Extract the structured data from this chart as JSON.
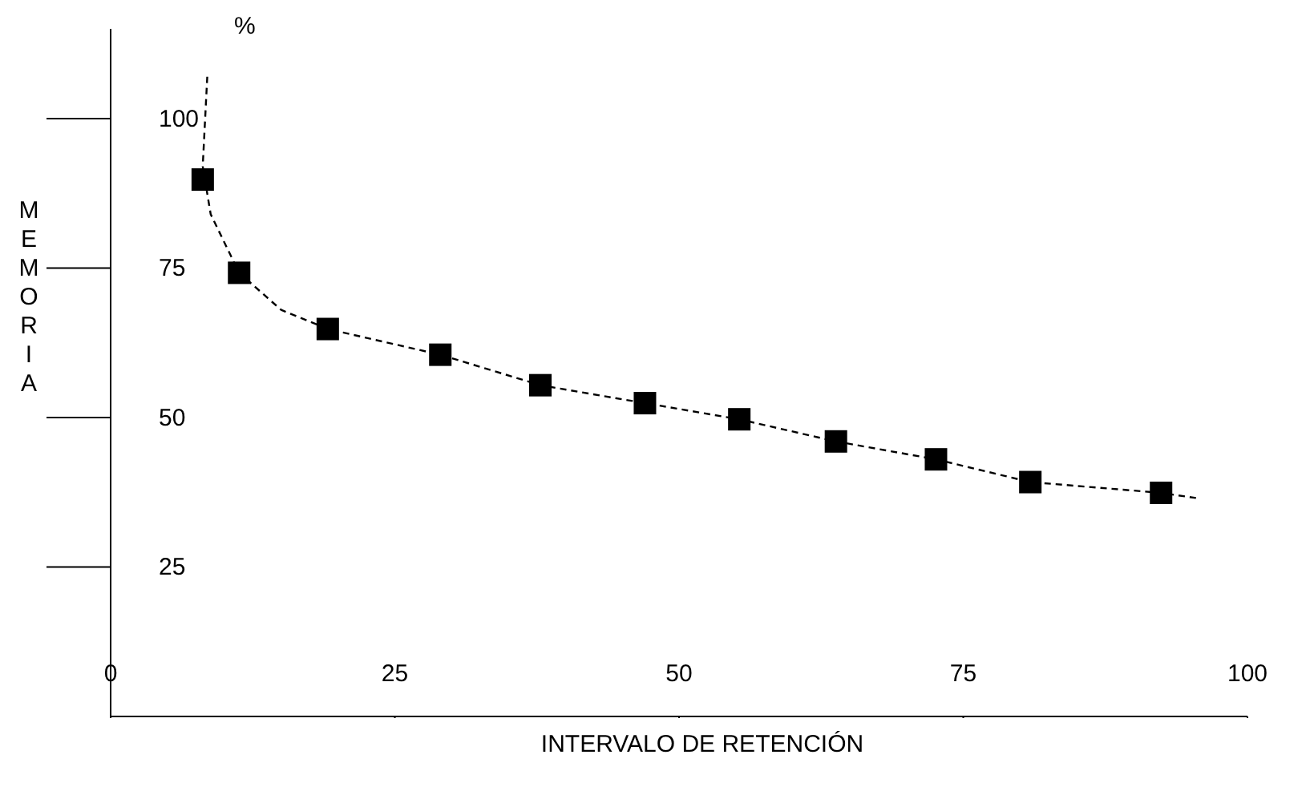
{
  "chart_data": {
    "type": "scatter",
    "xlabel": "INTERVALO DE RETENCIÓN",
    "ylabel": "MEMORIA",
    "annotations": [
      "%"
    ],
    "xlim": [
      0,
      100
    ],
    "xticks": [
      0,
      25,
      50,
      75,
      100
    ],
    "ylim": [
      0,
      115
    ],
    "yticks": [
      25,
      50,
      75,
      100
    ],
    "grid": false,
    "legend": false,
    "series": [
      {
        "color": "#000000",
        "marker": "square",
        "x": [
          8.1,
          11.3,
          19.1,
          29.0,
          37.8,
          47.0,
          55.3,
          63.8,
          72.6,
          80.9,
          92.4
        ],
        "values": [
          89.8,
          74.2,
          64.8,
          60.5,
          55.4,
          52.4,
          49.7,
          46.0,
          43.0,
          39.2,
          37.4
        ]
      },
      {
        "type": "line",
        "color": "#000000",
        "marker": "none",
        "line_style": "dashed",
        "x": [
          8.5,
          8.1,
          8.8,
          11.3,
          15,
          19.1,
          29,
          37.8,
          47,
          55.3,
          63.8,
          72.6,
          80.9,
          92.4,
          95.6
        ],
        "values": [
          107,
          92,
          84,
          74.2,
          68,
          64.8,
          60.5,
          55.4,
          52.4,
          49.7,
          46,
          43,
          39.2,
          37.4,
          36.5
        ]
      }
    ]
  }
}
